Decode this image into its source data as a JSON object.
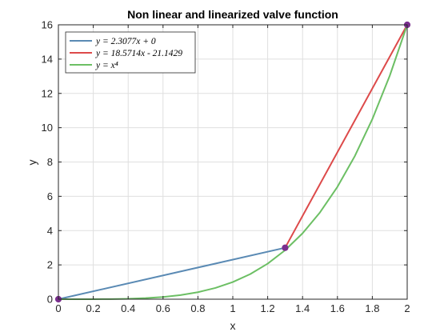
{
  "chart_data": {
    "type": "line",
    "title": "Non linear and linearized valve function",
    "xlabel": "x",
    "ylabel": "y",
    "xlim": [
      0,
      2
    ],
    "ylim": [
      0,
      16
    ],
    "xticks": [
      0,
      0.2,
      0.4,
      0.6,
      0.8,
      1,
      1.2,
      1.4,
      1.6,
      1.8,
      2
    ],
    "yticks": [
      0,
      2,
      4,
      6,
      8,
      10,
      12,
      14,
      16
    ],
    "grid": true,
    "legend_position": "top-left",
    "series": [
      {
        "name": "y = 2.3077x + 0",
        "color": "#5a8ab4",
        "x": [
          0,
          1.3
        ],
        "y": [
          0,
          3
        ]
      },
      {
        "name": "y = 18.5714x - 21.1429",
        "color": "#dd4a4a",
        "x": [
          1.3,
          2
        ],
        "y": [
          3,
          16
        ]
      },
      {
        "name": "y = x⁴",
        "color": "#6cbf64",
        "x": [
          0,
          0.1,
          0.2,
          0.3,
          0.4,
          0.5,
          0.6,
          0.7,
          0.8,
          0.9,
          1.0,
          1.1,
          1.2,
          1.3,
          1.4,
          1.5,
          1.6,
          1.7,
          1.8,
          1.9,
          2.0
        ],
        "y": [
          0,
          0.0001,
          0.0016,
          0.0081,
          0.0256,
          0.0625,
          0.1296,
          0.2401,
          0.4096,
          0.6561,
          1,
          1.4641,
          2.0736,
          2.8561,
          3.8416,
          5.0625,
          6.5536,
          8.3521,
          10.4976,
          13.0321,
          16
        ]
      }
    ],
    "markers": {
      "color": "#7a2f8e",
      "x": [
        0,
        1.3,
        2
      ],
      "y": [
        0,
        3,
        16
      ]
    }
  }
}
